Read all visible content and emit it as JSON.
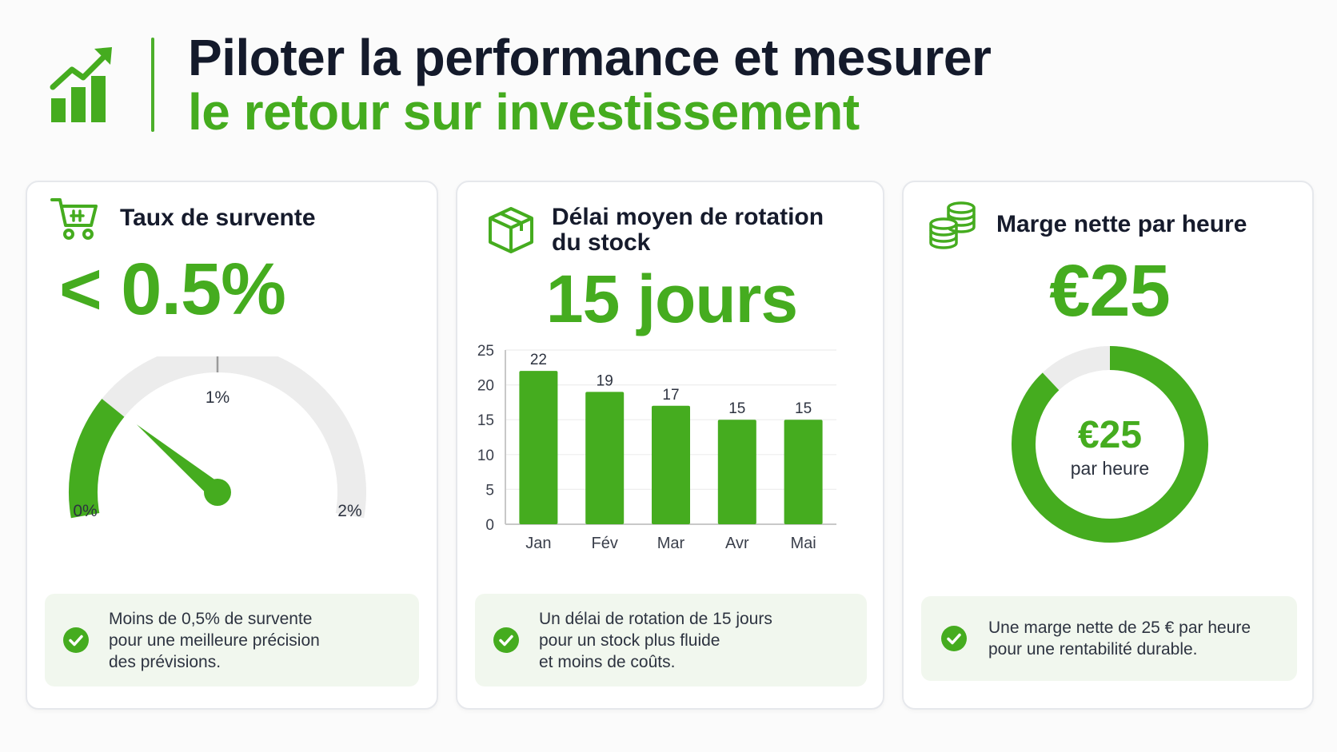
{
  "header": {
    "title_line1": "Piloter la performance et mesurer",
    "title_line2": "le retour sur investissement",
    "icon": "growth-chart-icon"
  },
  "colors": {
    "accent": "#45ac1f",
    "accent_light": "#f1f7ee",
    "track": "#ececec",
    "title_dark": "#141a2b"
  },
  "cards": [
    {
      "title": "Taux de survente",
      "icon": "shopping-cart-icon",
      "value": "< 0.5%",
      "note": "Moins de 0,5% de survente\npour une meilleure précision\ndes prévisions."
    },
    {
      "title": "Délai moyen de rotation\ndu stock",
      "icon": "package-box-icon",
      "value": "15 jours",
      "note": "Un délai de rotation de 15 jours\npour un stock plus fluide\net moins de coûts."
    },
    {
      "title": "Marge nette par heure",
      "icon": "coin-stack-icon",
      "value": "€25",
      "note": "Une marge nette de 25 € par heure\npour une rentabilité durable."
    }
  ],
  "chart_data": [
    {
      "type": "gauge",
      "value": 0.5,
      "min": 0,
      "max": 2,
      "tick_labels": [
        "0%",
        "1%",
        "2%"
      ],
      "unit": "%"
    },
    {
      "type": "bar",
      "categories": [
        "Jan",
        "Fév",
        "Mar",
        "Avr",
        "Mai"
      ],
      "values": [
        22,
        19,
        17,
        15,
        15
      ],
      "ylim": [
        0,
        25
      ],
      "yticks": [
        0,
        5,
        10,
        15,
        20,
        25
      ],
      "grid": true,
      "title": "",
      "xlabel": "",
      "ylabel": ""
    },
    {
      "type": "donut",
      "value_fraction": 0.88,
      "center_value": "€25",
      "center_label": "par heure"
    }
  ]
}
